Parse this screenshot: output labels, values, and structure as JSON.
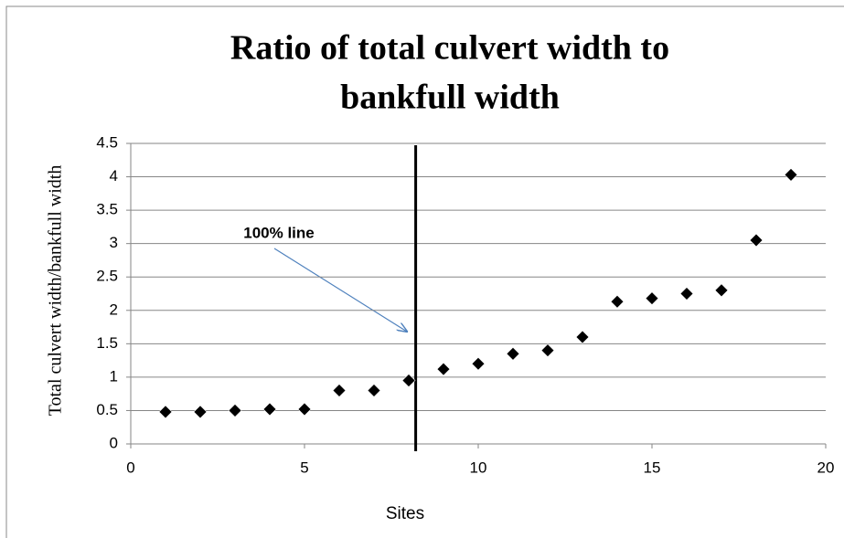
{
  "chart_data": {
    "type": "scatter",
    "title": [
      "Ratio of total culvert width to",
      "bankfull width"
    ],
    "x_label": "Sites",
    "y_label": "Total culvert width/bankfull width",
    "annotation": "100% line",
    "vline_x": 8.2,
    "x": [
      1,
      2,
      3,
      4,
      5,
      6,
      7,
      8,
      9,
      10,
      11,
      12,
      13,
      14,
      15,
      16,
      17,
      18,
      19
    ],
    "values": [
      0.48,
      0.48,
      0.5,
      0.52,
      0.52,
      0.8,
      0.8,
      0.95,
      1.12,
      1.2,
      1.35,
      1.4,
      1.6,
      2.13,
      2.18,
      2.25,
      2.3,
      3.05,
      4.03
    ],
    "color": "#000000",
    "xlim": [
      0,
      20
    ],
    "xticks": [
      0,
      5,
      10,
      15,
      20
    ],
    "ylim": [
      0,
      4.5
    ],
    "yticks": [
      0,
      0.5,
      1,
      1.5,
      2,
      2.5,
      3,
      3.5,
      4,
      4.5
    ],
    "grid": true
  }
}
